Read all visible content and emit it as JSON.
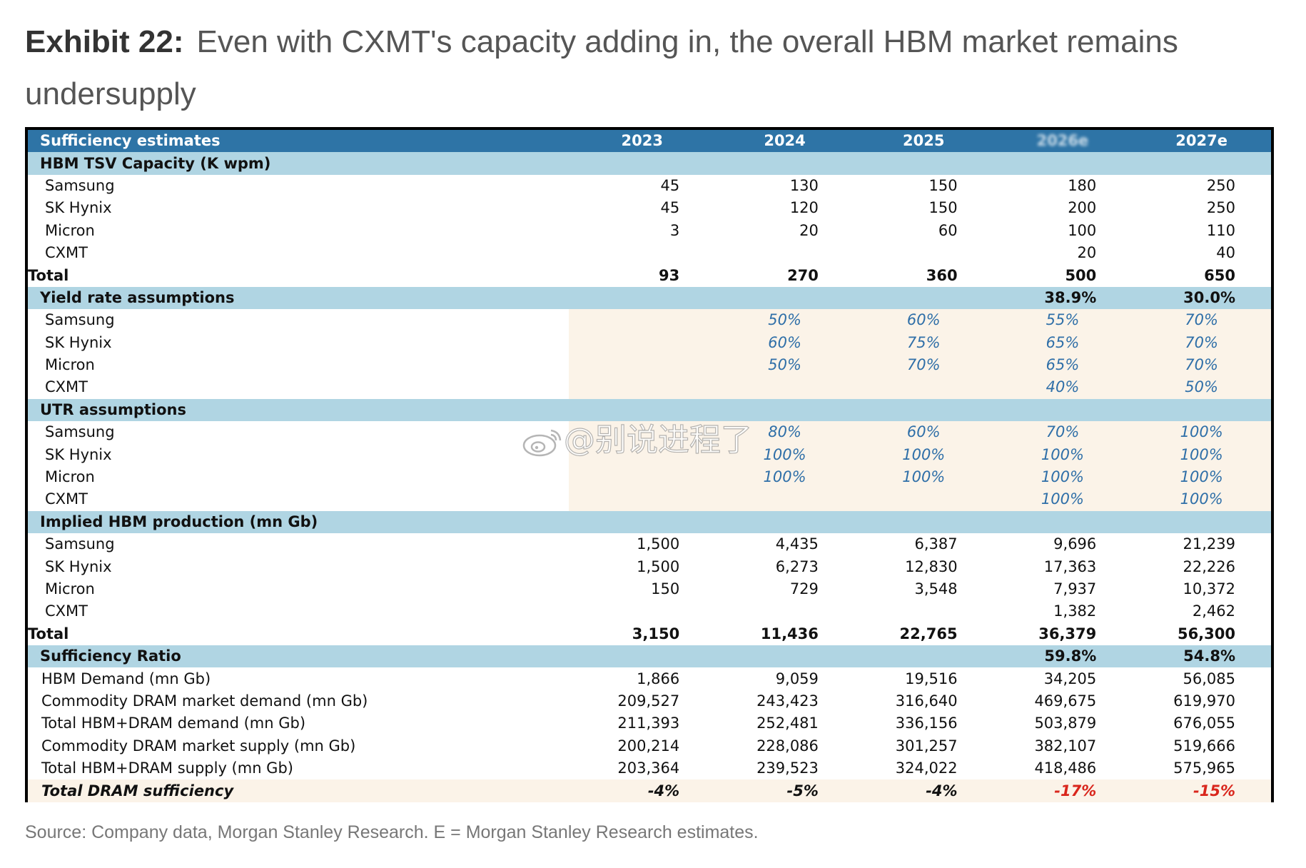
{
  "title": {
    "exhibit": "Exhibit 22:",
    "text": "Even with CXMT's capacity adding in, the overall HBM market remains undersupply"
  },
  "table": {
    "header": [
      "Sufficiency estimates",
      "2023",
      "2024",
      "2025",
      "2026e",
      "2027e"
    ],
    "capacity": {
      "label": "HBM TSV Capacity (K wpm)",
      "rows": [
        {
          "name": "Samsung",
          "values": [
            "45",
            "130",
            "150",
            "180",
            "250"
          ]
        },
        {
          "name": "SK Hynix",
          "values": [
            "45",
            "120",
            "150",
            "200",
            "250"
          ]
        },
        {
          "name": "Micron",
          "values": [
            "3",
            "20",
            "60",
            "100",
            "110"
          ]
        },
        {
          "name": "CXMT",
          "values": [
            "",
            "",
            "",
            "20",
            "40"
          ]
        }
      ],
      "total": {
        "name": "Total",
        "values": [
          "93",
          "270",
          "360",
          "500",
          "650"
        ]
      }
    },
    "yield": {
      "label": "Yield rate assumptions",
      "section_values": [
        "",
        "",
        "",
        "38.9%",
        "30.0%"
      ],
      "rows": [
        {
          "name": "Samsung",
          "values": [
            "",
            "50%",
            "60%",
            "55%",
            "70%"
          ]
        },
        {
          "name": "SK Hynix",
          "values": [
            "",
            "60%",
            "75%",
            "65%",
            "70%"
          ]
        },
        {
          "name": "Micron",
          "values": [
            "",
            "50%",
            "70%",
            "65%",
            "70%"
          ]
        },
        {
          "name": "CXMT",
          "values": [
            "",
            "",
            "",
            "40%",
            "50%"
          ]
        }
      ]
    },
    "utr": {
      "label": "UTR assumptions",
      "rows": [
        {
          "name": "Samsung",
          "values": [
            "",
            "80%",
            "60%",
            "70%",
            "100%"
          ]
        },
        {
          "name": "SK Hynix",
          "values": [
            "",
            "100%",
            "100%",
            "100%",
            "100%"
          ]
        },
        {
          "name": "Micron",
          "values": [
            "",
            "100%",
            "100%",
            "100%",
            "100%"
          ]
        },
        {
          "name": "CXMT",
          "values": [
            "",
            "",
            "",
            "100%",
            "100%"
          ]
        }
      ]
    },
    "production": {
      "label": "Implied HBM production (mn Gb)",
      "rows": [
        {
          "name": "Samsung",
          "values": [
            "1,500",
            "4,435",
            "6,387",
            "9,696",
            "21,239"
          ]
        },
        {
          "name": "SK Hynix",
          "values": [
            "1,500",
            "6,273",
            "12,830",
            "17,363",
            "22,226"
          ]
        },
        {
          "name": "Micron",
          "values": [
            "150",
            "729",
            "3,548",
            "7,937",
            "10,372"
          ]
        },
        {
          "name": "CXMT",
          "values": [
            "",
            "",
            "",
            "1,382",
            "2,462"
          ]
        }
      ],
      "total": {
        "name": "Total",
        "values": [
          "3,150",
          "11,436",
          "22,765",
          "36,379",
          "56,300"
        ]
      }
    },
    "sufficiency": {
      "label": "Sufficiency Ratio",
      "section_values": [
        "",
        "",
        "",
        "59.8%",
        "54.8%"
      ],
      "rows": [
        {
          "name": "HBM Demand  (mn Gb)",
          "values": [
            "1,866",
            "9,059",
            "19,516",
            "34,205",
            "56,085"
          ]
        },
        {
          "name": "Commodity DRAM market demand (mn Gb)",
          "values": [
            "209,527",
            "243,423",
            "316,640",
            "469,675",
            "619,970"
          ]
        },
        {
          "name": "Total HBM+DRAM demand (mn Gb)",
          "values": [
            "211,393",
            "252,481",
            "336,156",
            "503,879",
            "676,055"
          ]
        },
        {
          "name": "Commodity DRAM market supply (mn Gb)",
          "values": [
            "200,214",
            "228,086",
            "301,257",
            "382,107",
            "519,666"
          ]
        },
        {
          "name": "Total HBM+DRAM supply (mn Gb)",
          "values": [
            "203,364",
            "239,523",
            "324,022",
            "418,486",
            "575,965"
          ]
        }
      ],
      "total_dram": {
        "name": "Total DRAM sufficiency",
        "values": [
          "-4%",
          "-5%",
          "-4%",
          "-17%",
          "-15%"
        ]
      }
    }
  },
  "source": "Source: Company data, Morgan Stanley Research. E = Morgan Stanley Research estimates.",
  "watermark": "@别说进程了",
  "colors": {
    "header_bg": "#2e74a6",
    "section_bg": "#b0d5e3",
    "assumption_bg": "#fbf3e8",
    "input_text": "#2f6fa8",
    "negative_text": "#d9261c"
  }
}
